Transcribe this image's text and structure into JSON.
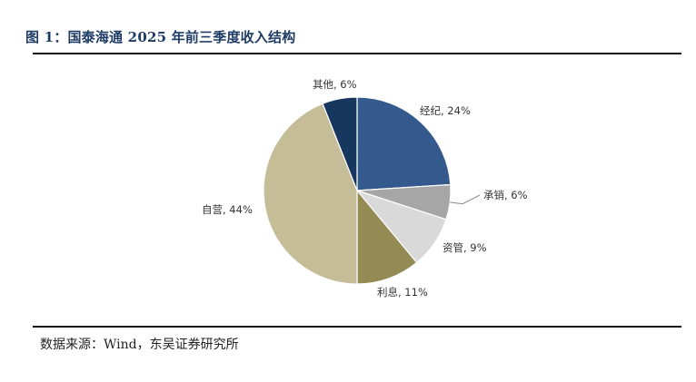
{
  "figure": {
    "title": "图 1：国泰海通 2025 年前三季度收入结构",
    "source": "数据来源：Wind，东吴证券研究所"
  },
  "chart_data": {
    "type": "pie",
    "title": "图 1：国泰海通 2025 年前三季度收入结构",
    "slices": [
      {
        "label": "经纪",
        "value": 24,
        "display": "经纪, 24%",
        "color": "#34598c"
      },
      {
        "label": "承销",
        "value": 6,
        "display": "承销, 6%",
        "color": "#a6a6a6"
      },
      {
        "label": "资管",
        "value": 9,
        "display": "资管, 9%",
        "color": "#d9d9d9"
      },
      {
        "label": "利息",
        "value": 11,
        "display": "利息, 11%",
        "color": "#948b54"
      },
      {
        "label": "自营",
        "value": 44,
        "display": "自营, 44%",
        "color": "#c4bd97"
      },
      {
        "label": "其他",
        "value": 6,
        "display": "其他, 6%",
        "color": "#17375e"
      }
    ],
    "start_direction": "12 o'clock",
    "direction": "clockwise",
    "legend": "none",
    "data_labels": "outside"
  }
}
